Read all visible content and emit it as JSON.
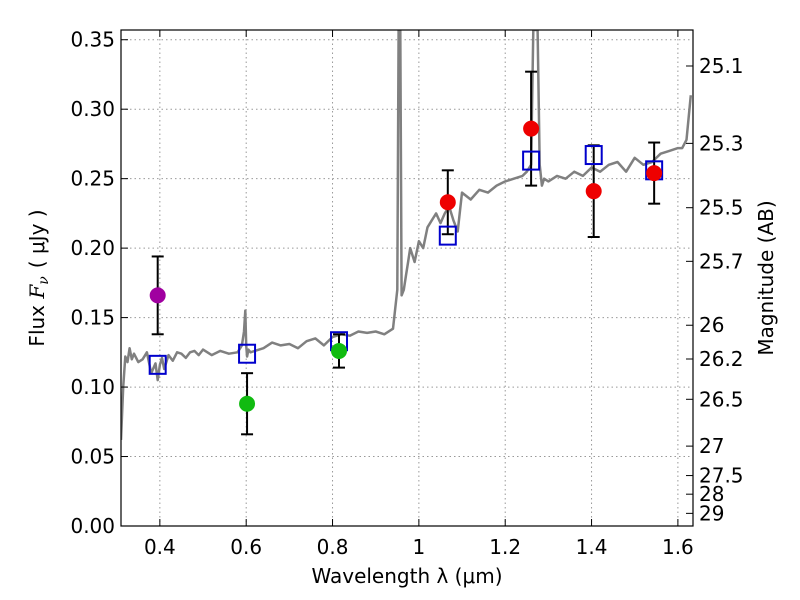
{
  "chart_data": {
    "type": "scatter",
    "title": "",
    "xlabel": "Wavelength  λ (μm)",
    "ylabel": "Flux  F_ν  ( μJy )",
    "ylabel_parts": {
      "prefix": "Flux ",
      "symbol": "F",
      "subscript": "ν",
      "unit": "( μJy )"
    },
    "y2label": "Magnitude (AB)",
    "xlim": [
      0.31,
      1.635
    ],
    "ylim": [
      0.0,
      0.357
    ],
    "grid": true,
    "x_ticks": [
      0.4,
      0.6,
      0.8,
      1.0,
      1.2,
      1.4,
      1.6
    ],
    "x_tick_labels": [
      "0.4",
      "0.6",
      "0.8",
      "1",
      "1.2",
      "1.4",
      "1.6"
    ],
    "y_ticks": [
      0.0,
      0.05,
      0.1,
      0.15,
      0.2,
      0.25,
      0.3,
      0.35
    ],
    "y_tick_labels": [
      "0.00",
      "0.05",
      "0.10",
      "0.15",
      "0.20",
      "0.25",
      "0.30",
      "0.35"
    ],
    "y2_ticks": [
      {
        "label": "25.1",
        "flux": 0.3311
      },
      {
        "label": "25.3",
        "flux": 0.2754
      },
      {
        "label": "25.5",
        "flux": 0.2291
      },
      {
        "label": "25.7",
        "flux": 0.1905
      },
      {
        "label": "26",
        "flux": 0.1445
      },
      {
        "label": "26.2",
        "flux": 0.1202
      },
      {
        "label": "26.5",
        "flux": 0.0912
      },
      {
        "label": "27",
        "flux": 0.0575
      },
      {
        "label": "27.5",
        "flux": 0.0363
      },
      {
        "label": "28",
        "flux": 0.0229
      },
      {
        "label": "29",
        "flux": 0.0091
      }
    ],
    "colors": {
      "model": "#808080",
      "purple": "#a000a0",
      "green": "#11bb11",
      "red": "#ee0000",
      "squares": "#0000cc",
      "errorbars": "#000000",
      "grid": "#999999"
    },
    "series": [
      {
        "name": "model spectrum",
        "kind": "line",
        "color": "#808080",
        "x": [
          0.31,
          0.315,
          0.32,
          0.325,
          0.33,
          0.335,
          0.34,
          0.35,
          0.36,
          0.37,
          0.38,
          0.39,
          0.395,
          0.4,
          0.405,
          0.41,
          0.42,
          0.43,
          0.44,
          0.45,
          0.46,
          0.47,
          0.48,
          0.49,
          0.5,
          0.52,
          0.54,
          0.56,
          0.58,
          0.59,
          0.595,
          0.598,
          0.6,
          0.602,
          0.605,
          0.61,
          0.62,
          0.64,
          0.66,
          0.68,
          0.7,
          0.72,
          0.74,
          0.76,
          0.78,
          0.8,
          0.82,
          0.84,
          0.86,
          0.88,
          0.9,
          0.92,
          0.94,
          0.95,
          0.953,
          0.955,
          0.957,
          0.96,
          0.965,
          0.97,
          0.975,
          0.98,
          0.99,
          1.0,
          1.01,
          1.02,
          1.03,
          1.04,
          1.05,
          1.06,
          1.07,
          1.08,
          1.09,
          1.1,
          1.12,
          1.14,
          1.16,
          1.18,
          1.2,
          1.22,
          1.24,
          1.25,
          1.26,
          1.265,
          1.27,
          1.275,
          1.28,
          1.285,
          1.29,
          1.3,
          1.32,
          1.34,
          1.36,
          1.38,
          1.4,
          1.42,
          1.44,
          1.46,
          1.48,
          1.5,
          1.52,
          1.54,
          1.56,
          1.58,
          1.6,
          1.61,
          1.62,
          1.63
        ],
        "y": [
          0.062,
          0.1,
          0.122,
          0.118,
          0.128,
          0.12,
          0.124,
          0.118,
          0.12,
          0.125,
          0.11,
          0.117,
          0.105,
          0.116,
          0.121,
          0.113,
          0.123,
          0.119,
          0.125,
          0.124,
          0.121,
          0.125,
          0.126,
          0.123,
          0.127,
          0.123,
          0.126,
          0.124,
          0.125,
          0.13,
          0.14,
          0.155,
          0.13,
          0.122,
          0.127,
          0.125,
          0.126,
          0.128,
          0.132,
          0.13,
          0.131,
          0.128,
          0.133,
          0.135,
          0.13,
          0.136,
          0.138,
          0.137,
          0.14,
          0.139,
          0.14,
          0.138,
          0.142,
          0.17,
          0.357,
          0.357,
          0.357,
          0.166,
          0.17,
          0.18,
          0.19,
          0.2,
          0.19,
          0.205,
          0.2,
          0.215,
          0.22,
          0.225,
          0.218,
          0.225,
          0.23,
          0.22,
          0.212,
          0.24,
          0.235,
          0.242,
          0.24,
          0.245,
          0.248,
          0.25,
          0.252,
          0.255,
          0.26,
          0.357,
          0.357,
          0.357,
          0.26,
          0.245,
          0.25,
          0.248,
          0.252,
          0.25,
          0.255,
          0.252,
          0.258,
          0.255,
          0.26,
          0.262,
          0.255,
          0.265,
          0.26,
          0.262,
          0.268,
          0.27,
          0.272,
          0.272,
          0.278,
          0.31
        ]
      },
      {
        "name": "purple photometry",
        "kind": "circle",
        "color": "#a000a0",
        "points": [
          {
            "x": 0.395,
            "y": 0.166,
            "err": 0.028
          }
        ]
      },
      {
        "name": "green photometry",
        "kind": "circle",
        "color": "#11bb11",
        "points": [
          {
            "x": 0.602,
            "y": 0.088,
            "err": 0.022
          },
          {
            "x": 0.815,
            "y": 0.126,
            "err": 0.012
          }
        ]
      },
      {
        "name": "red photometry",
        "kind": "circle",
        "color": "#ee0000",
        "points": [
          {
            "x": 1.067,
            "y": 0.233,
            "err": 0.023
          },
          {
            "x": 1.26,
            "y": 0.286,
            "err": 0.041
          },
          {
            "x": 1.405,
            "y": 0.241,
            "err": 0.033
          },
          {
            "x": 1.545,
            "y": 0.254,
            "err": 0.022
          }
        ]
      },
      {
        "name": "model synthetic photometry",
        "kind": "square",
        "color": "#0000cc",
        "points": [
          {
            "x": 0.395,
            "y": 0.116
          },
          {
            "x": 0.602,
            "y": 0.124
          },
          {
            "x": 0.815,
            "y": 0.133
          },
          {
            "x": 1.067,
            "y": 0.209
          },
          {
            "x": 1.26,
            "y": 0.263
          },
          {
            "x": 1.405,
            "y": 0.267
          },
          {
            "x": 1.545,
            "y": 0.256
          }
        ]
      }
    ]
  }
}
